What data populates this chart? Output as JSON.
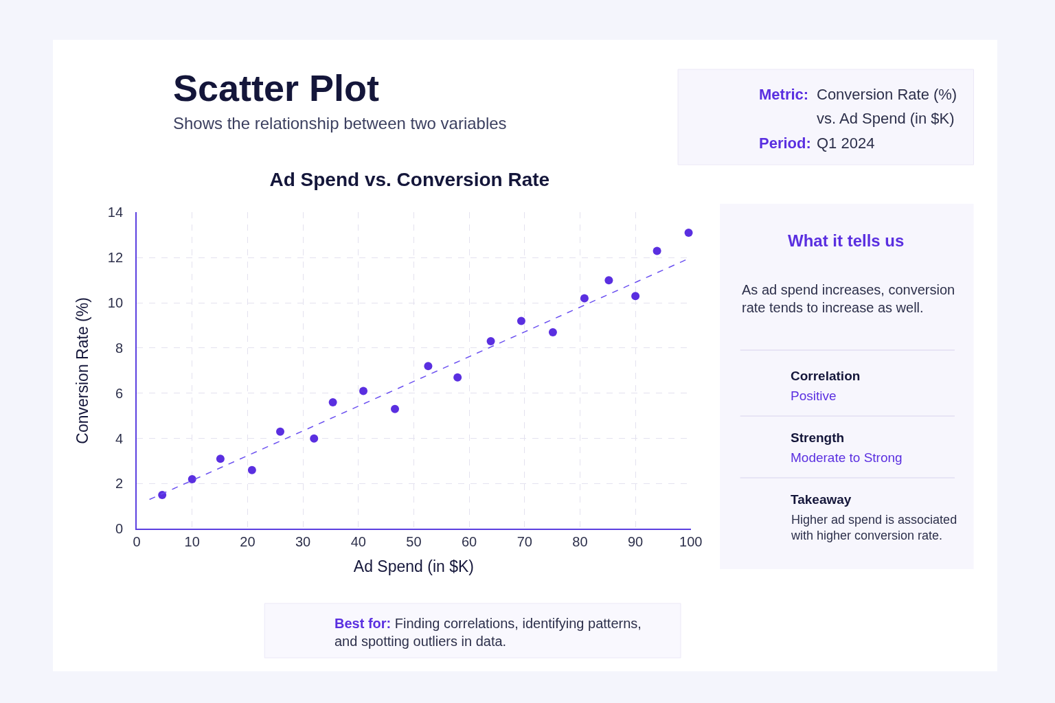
{
  "chart_data": {
    "type": "scatter",
    "title": "Ad Spend vs. Conversion Rate",
    "xlabel": "Ad Spend (in $K)",
    "ylabel": "Conversion Rate (%)",
    "xlim": [
      0,
      100
    ],
    "ylim": [
      0,
      14
    ],
    "xticks": [
      0,
      10,
      20,
      30,
      40,
      50,
      60,
      70,
      80,
      90,
      100
    ],
    "yticks": [
      0,
      2,
      4,
      6,
      8,
      10,
      12,
      14
    ],
    "grid": true,
    "series": [
      {
        "marker": "circle",
        "color": "#5a2fe0",
        "x": [
          4.6,
          10.0,
          15.1,
          20.8,
          25.9,
          32.0,
          35.4,
          40.9,
          46.6,
          52.6,
          57.9,
          63.9,
          69.4,
          75.1,
          80.8,
          85.2,
          90.0,
          93.9,
          99.6
        ],
        "values": [
          1.5,
          2.2,
          3.1,
          2.6,
          4.3,
          4.0,
          5.6,
          6.1,
          5.3,
          7.2,
          6.7,
          8.3,
          9.2,
          8.7,
          10.2,
          11.0,
          10.3,
          12.3,
          13.1
        ]
      },
      {
        "type": "line",
        "color": "#6a4ff0",
        "line_style": "dashed",
        "x": [
          2.3,
          100
        ],
        "values": [
          1.3,
          12.0
        ]
      }
    ],
    "annotations": [
      "Scatter Plot",
      "Shows the relationship between two variables",
      "Metric:",
      "Conversion Rate (%)",
      "vs. Ad Spend (in $K)",
      "Period:",
      "Q1 2024",
      "What it tells us",
      "As ad spend increases, conversion rate tends to increase as well.",
      "Correlation",
      "Positive",
      "Strength",
      "Moderate to Strong",
      "Takeaway",
      "Higher ad spend is associated with higher conversion rate.",
      "Best for:",
      "Finding correlations, identifying patterns, and spotting outliers in data."
    ]
  }
}
